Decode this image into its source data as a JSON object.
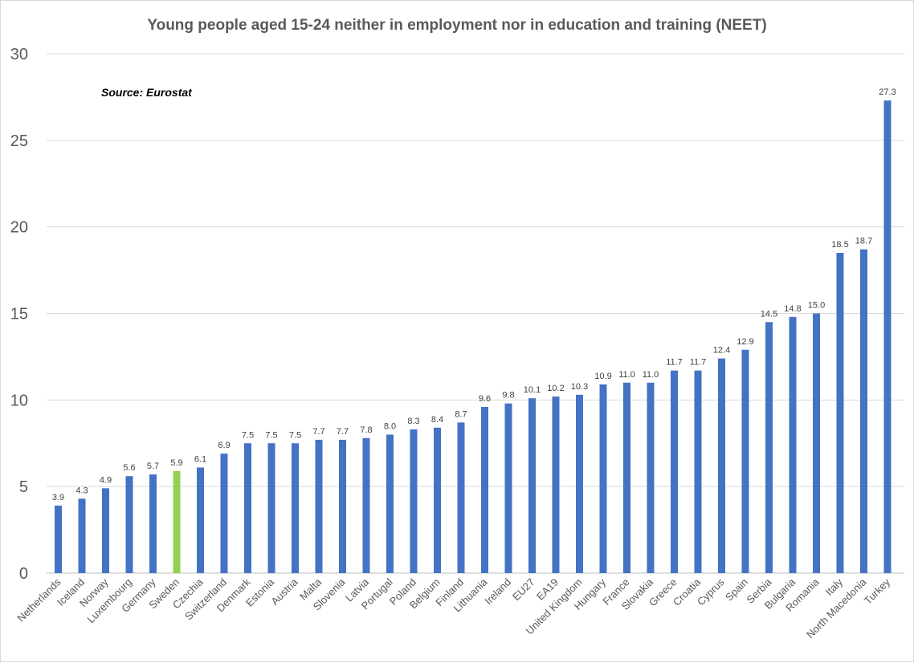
{
  "chart_data": {
    "type": "bar",
    "title": "Young people aged 15-24 neither in employment nor in education and training (NEET)",
    "annotation": "Source: Eurostat",
    "xlabel": "",
    "ylabel": "",
    "ylim": [
      0,
      30
    ],
    "yticks": [
      "0",
      "5",
      "10",
      "15",
      "20",
      "25",
      "30"
    ],
    "grid": true,
    "categories": [
      "Netherlands",
      "Iceland",
      "Norway",
      "Luxembourg",
      "Germany",
      "Sweden",
      "Czechia",
      "Switzerland",
      "Denmark",
      "Estonia",
      "Austria",
      "Malta",
      "Slovenia",
      "Latvia",
      "Portugal",
      "Poland",
      "Belgium",
      "Finland",
      "Lithuania",
      "Ireland",
      "EU27",
      "EA19",
      "United Kingdom",
      "Hungary",
      "France",
      "Slovakia",
      "Greece",
      "Croatia",
      "Cyprus",
      "Spain",
      "Serbia",
      "Bulgaria",
      "Romania",
      "Italy",
      "North Macedonia",
      "Turkey"
    ],
    "values": [
      3.9,
      4.3,
      4.9,
      5.6,
      5.7,
      5.9,
      6.1,
      6.9,
      7.5,
      7.5,
      7.5,
      7.7,
      7.7,
      7.8,
      8.0,
      8.3,
      8.4,
      8.7,
      9.6,
      9.8,
      10.1,
      10.2,
      10.3,
      10.9,
      11.0,
      11.0,
      11.7,
      11.7,
      12.4,
      12.9,
      14.5,
      14.8,
      15.0,
      18.5,
      18.7,
      27.3
    ],
    "highlight": "Sweden",
    "colors": {
      "bar": "#4472C4",
      "highlight": "#92D050"
    }
  }
}
